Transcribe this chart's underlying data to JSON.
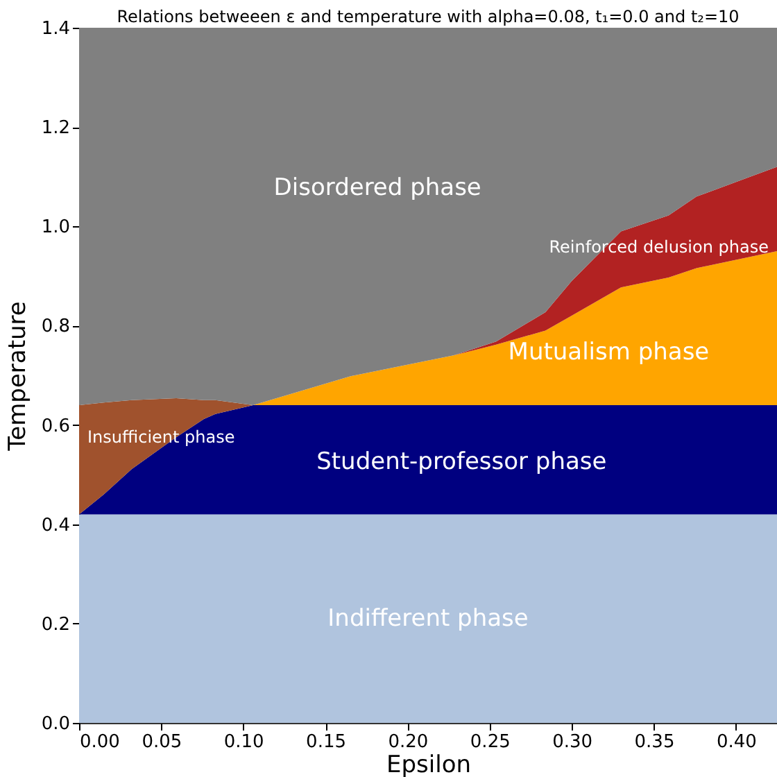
{
  "chart_data": {
    "type": "area",
    "stacked": true,
    "title": "Relations betweeen ε and temperature with alpha=0.08, t₁=0.0 and t₂=10",
    "xlabel": "Epsilon",
    "ylabel": "Temperature",
    "x": [
      0,
      0.015,
      0.032,
      0.059,
      0.076,
      0.083,
      0.106,
      0.165,
      0.228,
      0.254,
      0.284,
      0.3,
      0.33,
      0.359,
      0.376,
      0.425
    ],
    "series": [
      {
        "name": "Indifferent phase",
        "color": "#b0c4de",
        "values": [
          0.42,
          0.42,
          0.42,
          0.42,
          0.42,
          0.42,
          0.42,
          0.42,
          0.42,
          0.42,
          0.42,
          0.42,
          0.42,
          0.42,
          0.42,
          0.42
        ]
      },
      {
        "name": "Student-professor phase",
        "color": "#000080",
        "values": [
          0,
          0.04,
          0.091,
          0.155,
          0.192,
          0.202,
          0.22,
          0.22,
          0.22,
          0.22,
          0.22,
          0.22,
          0.22,
          0.22,
          0.22,
          0.22
        ]
      },
      {
        "name": "Insufficient phase",
        "color": "#a0522d",
        "values": [
          0.22,
          0.185,
          0.139,
          0.079,
          0.038,
          0.028,
          0,
          0,
          0,
          0,
          0,
          0,
          0,
          0,
          0,
          0
        ]
      },
      {
        "name": "Mutualism phase",
        "color": "#ffa500",
        "values": [
          0,
          0,
          0,
          0,
          0,
          0,
          0,
          0.058,
          0.1,
          0.122,
          0.15,
          0.18,
          0.237,
          0.257,
          0.276,
          0.31
        ]
      },
      {
        "name": "Reinforced delusion phase",
        "color": "#b22222",
        "values": [
          0,
          0,
          0,
          0,
          0,
          0,
          0,
          0,
          0,
          0.006,
          0.037,
          0.07,
          0.113,
          0.125,
          0.144,
          0.17
        ]
      },
      {
        "name": "Disordered phase",
        "color": "#808080",
        "values": [
          0.76,
          0.755,
          0.75,
          0.746,
          0.75,
          0.75,
          0.76,
          0.702,
          0.66,
          0.632,
          0.573,
          0.51,
          0.41,
          0.378,
          0.34,
          0.28
        ]
      }
    ],
    "xlim": [
      0,
      0.425
    ],
    "xticks": [
      {
        "value": 0,
        "label": "0.00"
      },
      0.05,
      {
        "value": 0.1,
        "label": "0.10"
      },
      0.15,
      {
        "value": 0.2,
        "label": "0.20"
      },
      0.25,
      {
        "value": 0.3,
        "label": "0.30"
      },
      0.35,
      {
        "value": 0.4,
        "label": "0.40"
      }
    ],
    "ylim": [
      0,
      1.4
    ],
    "yticks": [
      {
        "value": 0,
        "label": "0.0"
      },
      0.2,
      0.4,
      0.6,
      0.8,
      {
        "value": 1.0,
        "label": "1.0"
      },
      1.2,
      1.4
    ],
    "grid": false
  }
}
